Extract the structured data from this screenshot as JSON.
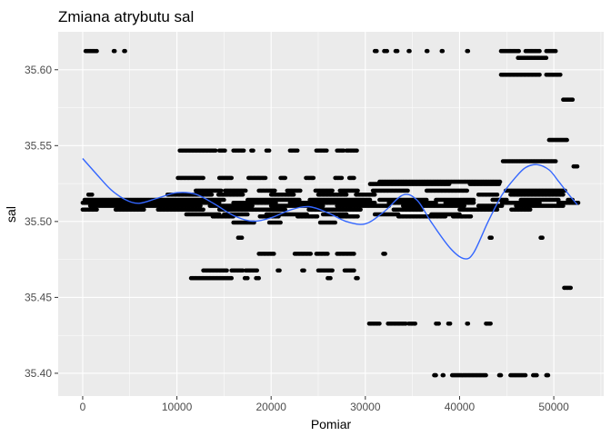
{
  "chart_data": {
    "type": "scatter",
    "title": "Zmiana atrybutu sal",
    "xlabel": "Pomiar",
    "ylabel": "sal",
    "xlim": [
      -2600,
      55300
    ],
    "ylim": [
      35.385,
      35.625
    ],
    "x_ticks": [
      0,
      10000,
      20000,
      30000,
      40000,
      50000
    ],
    "x_tick_labels": [
      "0",
      "10000",
      "20000",
      "30000",
      "40000",
      "50000"
    ],
    "y_ticks": [
      35.4,
      35.45,
      35.5,
      35.55,
      35.6
    ],
    "y_tick_labels": [
      "35.40",
      "35.45",
      "35.50",
      "35.55",
      "35.60"
    ],
    "grid": true,
    "colors": {
      "panel": "#ebebeb",
      "grid_major": "#ffffff",
      "points": "#000000",
      "smooth_line": "#3366ff",
      "tick_text": "#4d4d4d",
      "tick_mark": "#333333"
    },
    "scatter_bands": [
      {
        "y": 35.6123,
        "runs": [
          [
            300,
            1500
          ],
          [
            3300,
            3400
          ],
          [
            4400,
            4500
          ]
        ]
      },
      {
        "y": 35.6123,
        "runs": [
          [
            31000,
            31200
          ],
          [
            32000,
            32300
          ],
          [
            33200,
            33400
          ],
          [
            34600,
            34700
          ],
          [
            36500,
            36600
          ],
          [
            38100,
            38200
          ],
          [
            40800,
            40900
          ],
          [
            44400,
            46300
          ],
          [
            47000,
            48500
          ],
          [
            49200,
            50200
          ]
        ]
      },
      {
        "y": 35.6078,
        "runs": [
          [
            46200,
            49200
          ]
        ]
      },
      {
        "y": 35.5967,
        "runs": [
          [
            44400,
            48500
          ],
          [
            49200,
            50700
          ]
        ]
      },
      {
        "y": 35.5803,
        "runs": [
          [
            51000,
            52000
          ]
        ]
      },
      {
        "y": 35.5537,
        "runs": [
          [
            49500,
            51400
          ]
        ]
      },
      {
        "y": 35.5467,
        "runs": [
          [
            10300,
            14100
          ],
          [
            14500,
            15100
          ],
          [
            16000,
            17100
          ],
          [
            17900,
            18100
          ],
          [
            19500,
            19800
          ],
          [
            22000,
            22800
          ],
          [
            24800,
            25900
          ],
          [
            27000,
            27700
          ],
          [
            28000,
            29100
          ]
        ]
      },
      {
        "y": 35.5397,
        "runs": [
          [
            44600,
            50200
          ]
        ]
      },
      {
        "y": 35.5363,
        "runs": [
          [
            52100,
            52500
          ]
        ]
      },
      {
        "y": 35.5287,
        "runs": [
          [
            10100,
            12800
          ],
          [
            14500,
            15800
          ],
          [
            17600,
            19400
          ],
          [
            21000,
            21500
          ],
          [
            23700,
            24500
          ],
          [
            26800,
            27500
          ],
          [
            28300,
            28800
          ]
        ]
      },
      {
        "y": 35.5262,
        "runs": [
          [
            31500,
            44300
          ]
        ]
      },
      {
        "y": 35.5247,
        "runs": [
          [
            30500,
            38900
          ],
          [
            41100,
            44200
          ]
        ]
      },
      {
        "y": 35.5203,
        "runs": [
          [
            12000,
            14700
          ],
          [
            15100,
            17300
          ],
          [
            18700,
            20400
          ],
          [
            21700,
            23100
          ],
          [
            24700,
            26500
          ],
          [
            27300,
            29200
          ],
          [
            30800,
            34500
          ],
          [
            36500,
            40800
          ],
          [
            44900,
            51200
          ]
        ]
      },
      {
        "y": 35.5177,
        "runs": [
          [
            600,
            1000
          ],
          [
            9000,
            13700
          ],
          [
            14400,
            17000
          ],
          [
            20000,
            22400
          ],
          [
            25000,
            28000
          ],
          [
            29000,
            31000
          ],
          [
            42000,
            44000
          ],
          [
            45400,
            51000
          ]
        ]
      },
      {
        "y": 35.5143,
        "runs": [
          [
            200,
            15000
          ],
          [
            17500,
            23000
          ],
          [
            24100,
            30500
          ],
          [
            31500,
            36500
          ],
          [
            37500,
            41500
          ],
          [
            43500,
            45000
          ],
          [
            46500,
            50500
          ],
          [
            51500,
            52000
          ]
        ]
      },
      {
        "y": 35.5123,
        "runs": [
          [
            0,
            14500
          ],
          [
            16000,
            20500
          ],
          [
            22000,
            31000
          ],
          [
            32500,
            37500
          ],
          [
            38500,
            41500
          ],
          [
            44500,
            48500
          ],
          [
            50500,
            52600
          ]
        ]
      },
      {
        "y": 35.5103,
        "runs": [
          [
            800,
            12500
          ],
          [
            13500,
            18000
          ],
          [
            20000,
            25500
          ],
          [
            27000,
            32500
          ],
          [
            34000,
            40500
          ],
          [
            42000,
            44500
          ],
          [
            46000,
            51000
          ]
        ]
      },
      {
        "y": 35.5078,
        "runs": [
          [
            0,
            1500
          ],
          [
            3500,
            6500
          ],
          [
            8000,
            12800
          ],
          [
            14500,
            21500
          ],
          [
            24000,
            29500
          ],
          [
            33000,
            36000
          ],
          [
            40000,
            44000
          ],
          [
            45500,
            47500
          ]
        ]
      },
      {
        "y": 35.5047,
        "runs": [
          [
            11000,
            14500
          ],
          [
            15000,
            17500
          ],
          [
            19500,
            23800
          ],
          [
            25500,
            28000
          ],
          [
            31000,
            33500
          ],
          [
            37000,
            40000
          ]
        ]
      },
      {
        "y": 35.5033,
        "runs": [
          [
            13800,
            16000
          ],
          [
            18800,
            20800
          ],
          [
            22800,
            24900
          ],
          [
            27300,
            29200
          ],
          [
            33500,
            38500
          ],
          [
            39300,
            41200
          ]
        ]
      },
      {
        "y": 35.4993,
        "runs": [
          [
            16000,
            18200
          ],
          [
            19800,
            21000
          ],
          [
            25200,
            26800
          ]
        ]
      },
      {
        "y": 35.4893,
        "runs": [
          [
            16500,
            16900
          ],
          [
            43200,
            43400
          ],
          [
            48600,
            48800
          ]
        ]
      },
      {
        "y": 35.4787,
        "runs": [
          [
            18700,
            20300
          ],
          [
            22500,
            24200
          ],
          [
            24800,
            26000
          ],
          [
            27000,
            28800
          ],
          [
            31900,
            32100
          ]
        ]
      },
      {
        "y": 35.4677,
        "runs": [
          [
            12800,
            15300
          ],
          [
            15800,
            17000
          ],
          [
            17300,
            18500
          ],
          [
            20700,
            20900
          ],
          [
            23300,
            23500
          ],
          [
            25000,
            26500
          ],
          [
            27800,
            28800
          ]
        ]
      },
      {
        "y": 35.4627,
        "runs": [
          [
            11500,
            15800
          ],
          [
            17200,
            17500
          ],
          [
            18400,
            18700
          ],
          [
            26000,
            26300
          ],
          [
            29000,
            29200
          ]
        ]
      },
      {
        "y": 35.4563,
        "runs": [
          [
            51100,
            51800
          ]
        ]
      },
      {
        "y": 35.4327,
        "runs": [
          [
            30400,
            31500
          ],
          [
            32400,
            34300
          ],
          [
            34600,
            35300
          ],
          [
            37500,
            37800
          ],
          [
            38800,
            39000
          ],
          [
            40800,
            40900
          ],
          [
            42800,
            43300
          ]
        ]
      },
      {
        "y": 35.3987,
        "runs": [
          [
            37300,
            37500
          ],
          [
            38200,
            38300
          ],
          [
            39200,
            42800
          ],
          [
            44200,
            44400
          ],
          [
            45400,
            47000
          ],
          [
            47800,
            48200
          ],
          [
            49200,
            49400
          ]
        ]
      }
    ],
    "smooth_line": {
      "x": [
        0,
        1500,
        3000,
        4500,
        6000,
        8000,
        10000,
        12000,
        14000,
        16000,
        18000,
        20000,
        22000,
        24000,
        26000,
        28000,
        30000,
        32000,
        34000,
        35500,
        37000,
        39000,
        40500,
        41500,
        43000,
        44500,
        46000,
        47000,
        48200,
        49500,
        50500,
        51500,
        52500
      ],
      "y": [
        35.5415,
        35.531,
        35.521,
        35.5145,
        35.512,
        35.5155,
        35.519,
        35.518,
        35.5115,
        35.504,
        35.5002,
        35.5025,
        35.5075,
        35.5098,
        35.5058,
        35.5,
        35.4985,
        35.5065,
        35.5175,
        35.514,
        35.4995,
        35.4825,
        35.4755,
        35.4795,
        35.4995,
        35.5175,
        35.5295,
        35.5355,
        35.5375,
        35.534,
        35.5265,
        35.5185,
        35.511
      ]
    }
  }
}
